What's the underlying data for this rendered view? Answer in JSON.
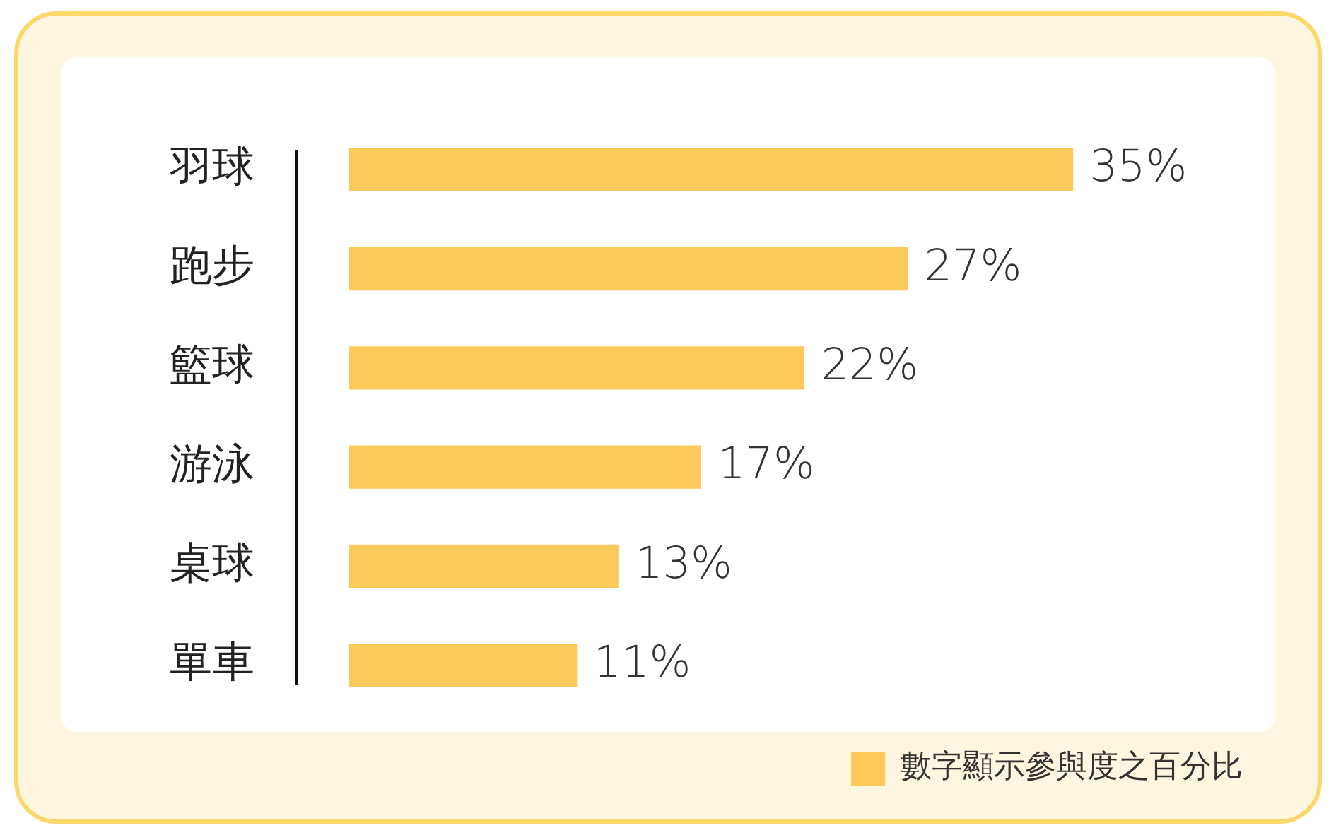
{
  "chart_data": {
    "type": "bar",
    "orientation": "horizontal",
    "categories": [
      "羽球",
      "跑步",
      "籃球",
      "游泳",
      "桌球",
      "單車"
    ],
    "series": [
      {
        "name": "數字顯示參與度之百分比",
        "color": "#fcc95b",
        "values": [
          35,
          27,
          22,
          17,
          13,
          11
        ],
        "value_labels": [
          "35%",
          "27%",
          "22%",
          "17%",
          "13%",
          "11%"
        ]
      }
    ],
    "xlim": [
      0,
      45
    ],
    "tick_labels": "y",
    "legend": "bottom right"
  }
}
